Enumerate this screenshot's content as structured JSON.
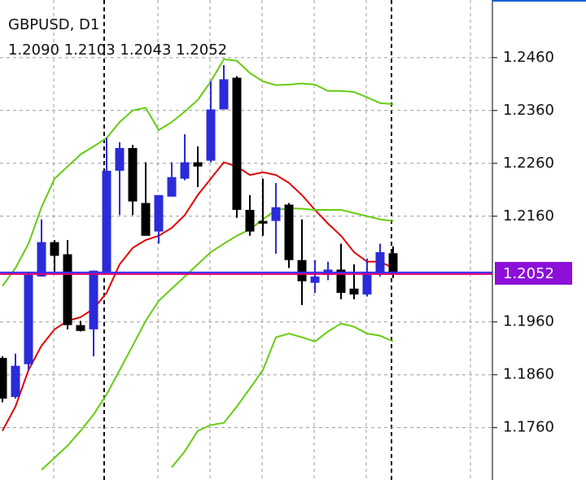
{
  "chart_data": {
    "type": "candlestick",
    "title": "GBPUSD, D1",
    "subtitle": "1.2090 1.2103 1.2043 1.2052",
    "categories": [
      null,
      null,
      null,
      null,
      null,
      null,
      null,
      null,
      null,
      null,
      null,
      null,
      null,
      null,
      null,
      null,
      null,
      null,
      null,
      null,
      null,
      null,
      null,
      null,
      null,
      null,
      null,
      null,
      null,
      null,
      null
    ],
    "open": [
      1.1892,
      1.1818,
      1.188,
      1.2046,
      1.2111,
      1.2088,
      1.1954,
      1.1946,
      1.2054,
      1.2246,
      1.2289,
      1.2185,
      1.2131,
      1.2197,
      1.2231,
      1.2262,
      1.2265,
      1.2362,
      1.2422,
      1.2172,
      1.2151,
      1.2151,
      1.2182,
      1.2077,
      1.2034,
      1.2049,
      1.2059,
      1.2023,
      1.2012,
      1.2051,
      1.209
    ],
    "high": [
      1.1895,
      1.19,
      1.2054,
      1.2154,
      1.2115,
      1.2115,
      1.1962,
      1.2057,
      1.2308,
      1.23,
      1.2295,
      1.2262,
      1.22,
      1.2262,
      1.2315,
      1.2292,
      1.2415,
      1.2446,
      1.2425,
      1.22,
      1.2231,
      1.2223,
      1.2185,
      1.2154,
      1.2077,
      1.2074,
      1.2108,
      1.2069,
      1.208,
      1.2108,
      1.2103
    ],
    "low": [
      1.1808,
      1.1815,
      1.1869,
      1.2046,
      1.2054,
      1.1946,
      1.1942,
      1.1895,
      1.2051,
      1.2162,
      1.2162,
      1.2123,
      1.2108,
      1.2197,
      1.2228,
      1.2215,
      1.2262,
      1.2362,
      1.2157,
      1.2123,
      1.2123,
      1.2089,
      1.2062,
      1.1992,
      1.2015,
      1.2039,
      1.2003,
      1.2003,
      1.2008,
      1.2046,
      1.2043
    ],
    "close": [
      1.1815,
      1.1877,
      1.2049,
      1.2111,
      1.2085,
      1.1954,
      1.1943,
      1.2057,
      1.2246,
      1.2289,
      1.2188,
      1.2123,
      1.22,
      1.2234,
      1.2262,
      1.2254,
      1.2362,
      1.2419,
      1.2172,
      1.2131,
      1.2146,
      1.2177,
      1.2077,
      1.2037,
      1.2046,
      1.2059,
      1.2015,
      1.2012,
      1.2054,
      1.2092,
      1.2052
    ],
    "up_color": "#2b2bd9",
    "down_color": "#000000",
    "series": [
      {
        "color": "#e00000",
        "values": [
          1.1754,
          1.18,
          1.1869,
          1.1915,
          1.1946,
          1.1962,
          1.1969,
          1.1985,
          1.2015,
          1.2069,
          1.21,
          1.2115,
          1.2123,
          1.2138,
          1.2162,
          1.22,
          1.2231,
          1.2262,
          1.2254,
          1.2238,
          1.2243,
          1.2238,
          1.2223,
          1.22,
          1.2172,
          1.2146,
          1.2123,
          1.2092,
          1.2074,
          1.2074,
          1.2062
        ]
      },
      {
        "color": "#66cc11",
        "values": [
          1.2028,
          1.2062,
          1.2108,
          1.2177,
          1.2231,
          1.2254,
          1.2277,
          1.2292,
          1.2308,
          1.2338,
          1.236,
          1.2365,
          1.2323,
          1.2338,
          1.2358,
          1.238,
          1.2415,
          1.2457,
          1.2454,
          1.2431,
          1.2415,
          1.2408,
          1.2409,
          1.2411,
          1.2409,
          1.2397,
          1.2397,
          1.2395,
          1.2385,
          1.2374,
          1.2372
        ]
      },
      {
        "color": "#66cc11",
        "values": [
          null,
          null,
          null,
          1.168,
          1.1703,
          1.1726,
          1.1754,
          1.1785,
          1.1823,
          1.1869,
          1.1915,
          1.1962,
          1.2,
          1.2023,
          1.2046,
          1.2069,
          1.2092,
          1.2108,
          1.2123,
          1.2135,
          1.2154,
          1.2172,
          1.2175,
          1.2174,
          1.2172,
          1.2172,
          1.2172,
          1.2166,
          1.216,
          1.2154,
          1.2151
        ]
      },
      {
        "color": "#66cc11",
        "values": [
          null,
          null,
          null,
          null,
          null,
          null,
          null,
          null,
          null,
          null,
          null,
          null,
          null,
          1.1685,
          1.1715,
          1.1754,
          1.1765,
          1.1769,
          1.18,
          1.1834,
          1.1869,
          1.1931,
          1.1938,
          1.1931,
          1.1923,
          1.1942,
          1.1957,
          1.1951,
          1.1938,
          1.1934,
          1.1923
        ]
      }
    ],
    "last_price": 1.2052,
    "last_price_color": "#8c10d8",
    "ylim": [
      1.1661,
      1.2569
    ],
    "yticks": [
      {
        "value": 1.246,
        "label": "1.2460"
      },
      {
        "value": 1.236,
        "label": "1.2360"
      },
      {
        "value": 1.226,
        "label": "1.2260"
      },
      {
        "value": 1.216,
        "label": "1.2160"
      },
      {
        "value": 1.196,
        "label": "1.1960"
      },
      {
        "value": 1.186,
        "label": "1.1860"
      },
      {
        "value": 1.176,
        "label": "1.1760"
      }
    ],
    "grid": true
  }
}
